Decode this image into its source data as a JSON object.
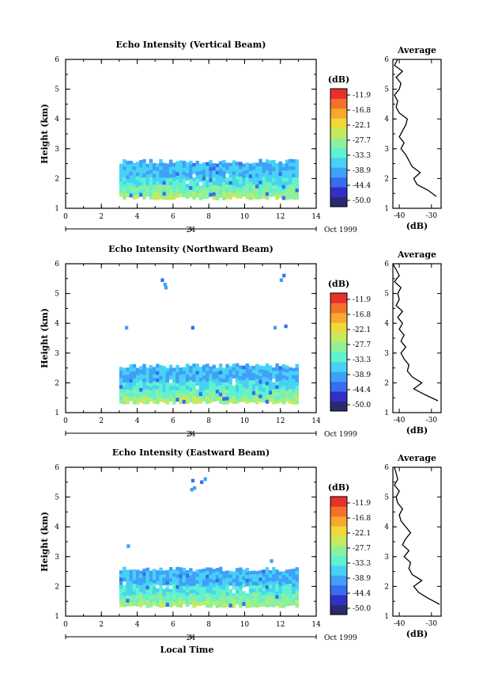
{
  "chart_data": [
    {
      "type": "heatmap",
      "title": "Echo Intensity (Vertical Beam)",
      "ylabel": "Height (km)",
      "xlim": [
        0,
        14
      ],
      "ylim": [
        1,
        6
      ],
      "xticks": [
        "0",
        "2",
        "4",
        "6",
        "8",
        "10",
        "12",
        "14"
      ],
      "yticks": [
        "1",
        "2",
        "3",
        "4",
        "5",
        "6"
      ],
      "date_day": "24",
      "date_month": "Oct 1999",
      "echo_region": {
        "x": [
          3.0,
          13.0
        ],
        "y_bottom": 1.4,
        "y_top": 2.5
      },
      "isolated_echoes": [],
      "colorbar": {
        "unit": "(dB)",
        "ticks": [
          "-11.9",
          "-16.8",
          "-22.1",
          "-27.7",
          "-33.3",
          "-38.9",
          "-44.4",
          "-50.0"
        ]
      },
      "profile": {
        "title": "Average",
        "xlabel": "(dB)",
        "xlim": [
          -42,
          -27
        ],
        "xticks": [
          "-40",
          "-30"
        ],
        "height": [
          1.4,
          1.6,
          1.8,
          2.0,
          2.2,
          2.4,
          2.6,
          2.8,
          3.0,
          3.2,
          3.4,
          3.6,
          3.8,
          4.0,
          4.2,
          4.4,
          4.6,
          4.8,
          5.0,
          5.2,
          5.4,
          5.6,
          5.8,
          6.0
        ],
        "value": [
          -28.5,
          -31.0,
          -34.5,
          -35.5,
          -33.5,
          -36.0,
          -37.0,
          -38.0,
          -39.5,
          -38.5,
          -40.0,
          -39.0,
          -38.0,
          -37.5,
          -40.0,
          -41.0,
          -40.5,
          -41.5,
          -40.0,
          -39.5,
          -41.0,
          -39.0,
          -41.5,
          -40.5
        ]
      }
    },
    {
      "type": "heatmap",
      "title": "Echo Intensity (Northward Beam)",
      "ylabel": "Height (km)",
      "xlim": [
        0,
        14
      ],
      "ylim": [
        1,
        6
      ],
      "xticks": [
        "0",
        "2",
        "4",
        "6",
        "8",
        "10",
        "12",
        "14"
      ],
      "yticks": [
        "1",
        "2",
        "3",
        "4",
        "5",
        "6"
      ],
      "date_day": "24",
      "date_month": "Oct 1999",
      "echo_region": {
        "x": [
          3.0,
          13.0
        ],
        "y_bottom": 1.4,
        "y_top": 2.5
      },
      "isolated_echoes": [
        {
          "x": 5.4,
          "y": 5.45
        },
        {
          "x": 5.55,
          "y": 5.3
        },
        {
          "x": 5.6,
          "y": 5.2
        },
        {
          "x": 12.2,
          "y": 5.6
        },
        {
          "x": 12.05,
          "y": 5.45
        },
        {
          "x": 3.4,
          "y": 3.85
        },
        {
          "x": 7.1,
          "y": 3.85
        },
        {
          "x": 11.7,
          "y": 3.85
        },
        {
          "x": 12.3,
          "y": 3.9
        }
      ],
      "colorbar": {
        "unit": "(dB)",
        "ticks": [
          "-11.9",
          "-16.8",
          "-22.1",
          "-27.7",
          "-33.3",
          "-38.9",
          "-44.4",
          "-50.0"
        ]
      },
      "profile": {
        "title": "Average",
        "xlabel": "(dB)",
        "xlim": [
          -42,
          -27
        ],
        "xticks": [
          "-40",
          "-30"
        ],
        "height": [
          1.4,
          1.6,
          1.8,
          2.0,
          2.2,
          2.4,
          2.6,
          2.8,
          3.0,
          3.2,
          3.4,
          3.6,
          3.8,
          4.0,
          4.2,
          4.4,
          4.6,
          4.8,
          5.0,
          5.2,
          5.4,
          5.6,
          5.8,
          6.0
        ],
        "value": [
          -28.0,
          -32.0,
          -35.5,
          -33.0,
          -36.0,
          -37.5,
          -37.0,
          -38.5,
          -39.5,
          -38.0,
          -39.5,
          -38.5,
          -40.0,
          -39.0,
          -40.5,
          -39.0,
          -41.0,
          -40.0,
          -40.5,
          -39.5,
          -41.5,
          -40.0,
          -41.0,
          -42.0
        ]
      }
    },
    {
      "type": "heatmap",
      "title": "Echo Intensity (Eastward Beam)",
      "ylabel": "Height (km)",
      "xlabel": "Local Time",
      "xlim": [
        0,
        14
      ],
      "ylim": [
        1,
        6
      ],
      "xticks": [
        "0",
        "2",
        "4",
        "6",
        "8",
        "10",
        "12",
        "14"
      ],
      "yticks": [
        "1",
        "2",
        "3",
        "4",
        "5",
        "6"
      ],
      "date_day": "24",
      "date_month": "Oct 1999",
      "echo_region": {
        "x": [
          3.0,
          13.0
        ],
        "y_bottom": 1.4,
        "y_top": 2.5
      },
      "isolated_echoes": [
        {
          "x": 7.1,
          "y": 5.55
        },
        {
          "x": 7.05,
          "y": 5.25
        },
        {
          "x": 7.2,
          "y": 5.3
        },
        {
          "x": 7.8,
          "y": 5.6
        },
        {
          "x": 7.6,
          "y": 5.5
        },
        {
          "x": 3.5,
          "y": 3.35
        },
        {
          "x": 11.5,
          "y": 2.85
        }
      ],
      "colorbar": {
        "unit": "(dB)",
        "ticks": [
          "-11.9",
          "-16.8",
          "-22.1",
          "-27.7",
          "-33.3",
          "-38.9",
          "-44.4",
          "-50.0"
        ]
      },
      "profile": {
        "title": "Average",
        "xlabel": "(dB)",
        "xlim": [
          -42,
          -27
        ],
        "xticks": [
          "-40",
          "-30"
        ],
        "height": [
          1.4,
          1.6,
          1.8,
          2.0,
          2.2,
          2.4,
          2.6,
          2.8,
          3.0,
          3.2,
          3.4,
          3.6,
          3.8,
          4.0,
          4.2,
          4.4,
          4.6,
          4.8,
          5.0,
          5.2,
          5.4,
          5.6,
          5.8,
          6.0
        ],
        "value": [
          -27.5,
          -31.0,
          -34.0,
          -35.5,
          -33.0,
          -36.0,
          -37.0,
          -36.5,
          -38.5,
          -37.0,
          -39.0,
          -38.0,
          -36.5,
          -38.0,
          -39.5,
          -40.0,
          -39.0,
          -40.5,
          -41.0,
          -40.0,
          -41.5,
          -40.5,
          -41.0,
          -41.5
        ]
      }
    }
  ],
  "colors": {
    "palette": [
      "#2a2a6e",
      "#3030c8",
      "#3a6cf0",
      "#40a0f8",
      "#46d2f4",
      "#5ef2d0",
      "#8ef09a",
      "#c4ea60",
      "#f0d838",
      "#f8a82c",
      "#f4702c",
      "#e8302a"
    ]
  }
}
